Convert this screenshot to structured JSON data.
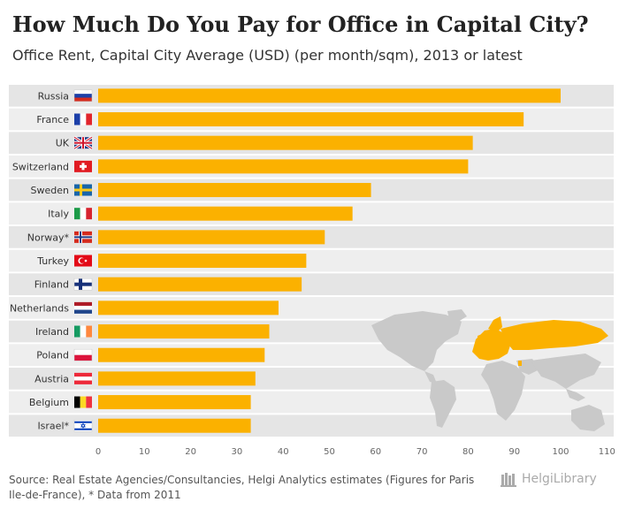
{
  "header": {
    "title": "How Much Do You Pay for Office in Capital City?",
    "subtitle": "Office Rent, Capital City Average (USD) (per month/sqm), 2013 or latest"
  },
  "chart_data": {
    "type": "bar",
    "orientation": "horizontal",
    "categories": [
      "Russia",
      "France",
      "UK",
      "Switzerland",
      "Sweden",
      "Italy",
      "Norway*",
      "Turkey",
      "Finland",
      "Netherlands",
      "Ireland",
      "Poland",
      "Austria",
      "Belgium",
      "Israel*"
    ],
    "values": [
      100,
      92,
      81,
      80,
      59,
      55,
      49,
      45,
      44,
      39,
      37,
      36,
      34,
      33,
      33
    ],
    "xlim": [
      0,
      110
    ],
    "xticks": [
      0,
      10,
      20,
      30,
      40,
      50,
      60,
      70,
      80,
      90,
      100,
      110
    ],
    "title": "How Much Do You Pay for Office in Capital City?",
    "subtitle": "Office Rent, Capital City Average (USD) (per month/sqm), 2013 or latest",
    "xlabel": "",
    "ylabel": "",
    "bar_color": "#fbb100"
  },
  "footer": {
    "source": "Source: Real Estate Agencies/Consultancies, Helgi Analytics estimates (Figures for Paris Ile-de-France), * Data from 2011",
    "logo": "HelgiLibrary"
  },
  "colors": {
    "bar": "#fbb100",
    "band_light": "#eeeeee",
    "band_dark": "#e5e5e5",
    "map": "#c9c9c9",
    "map_highlight": "#fbb100"
  }
}
